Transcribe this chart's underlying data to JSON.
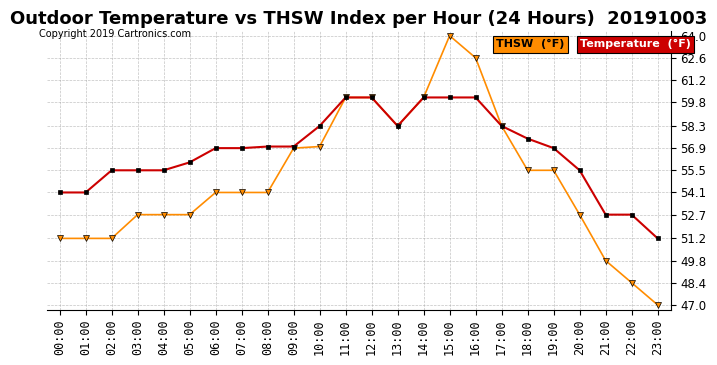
{
  "title": "Outdoor Temperature vs THSW Index per Hour (24 Hours)  20191003",
  "copyright": "Copyright 2019 Cartronics.com",
  "hours": [
    "00:00",
    "01:00",
    "02:00",
    "03:00",
    "04:00",
    "05:00",
    "06:00",
    "07:00",
    "08:00",
    "09:00",
    "10:00",
    "11:00",
    "12:00",
    "13:00",
    "14:00",
    "15:00",
    "16:00",
    "17:00",
    "18:00",
    "19:00",
    "20:00",
    "21:00",
    "22:00",
    "23:00"
  ],
  "temperature": [
    54.1,
    54.1,
    55.5,
    55.5,
    55.5,
    56.0,
    56.9,
    56.9,
    57.0,
    57.0,
    58.3,
    60.1,
    60.1,
    58.3,
    60.1,
    60.1,
    60.1,
    58.3,
    57.5,
    56.9,
    55.5,
    52.7,
    52.7,
    51.2
  ],
  "thsw": [
    51.2,
    51.2,
    51.2,
    52.7,
    52.7,
    52.7,
    54.1,
    54.1,
    54.1,
    56.9,
    57.0,
    60.1,
    60.1,
    58.3,
    60.1,
    64.0,
    62.6,
    58.3,
    55.5,
    55.5,
    52.7,
    49.8,
    48.4,
    47.0
  ],
  "ylim_min": 47.0,
  "ylim_max": 64.0,
  "yticks": [
    47.0,
    48.4,
    49.8,
    51.2,
    52.7,
    54.1,
    55.5,
    56.9,
    58.3,
    59.8,
    61.2,
    62.6,
    64.0
  ],
  "temp_color": "#cc0000",
  "thsw_color": "#ff8c00",
  "legend_thsw_bg": "#ff8c00",
  "legend_temp_bg": "#cc0000",
  "background_color": "#ffffff",
  "grid_color": "#aaaaaa",
  "title_fontsize": 13,
  "axis_fontsize": 8.5
}
